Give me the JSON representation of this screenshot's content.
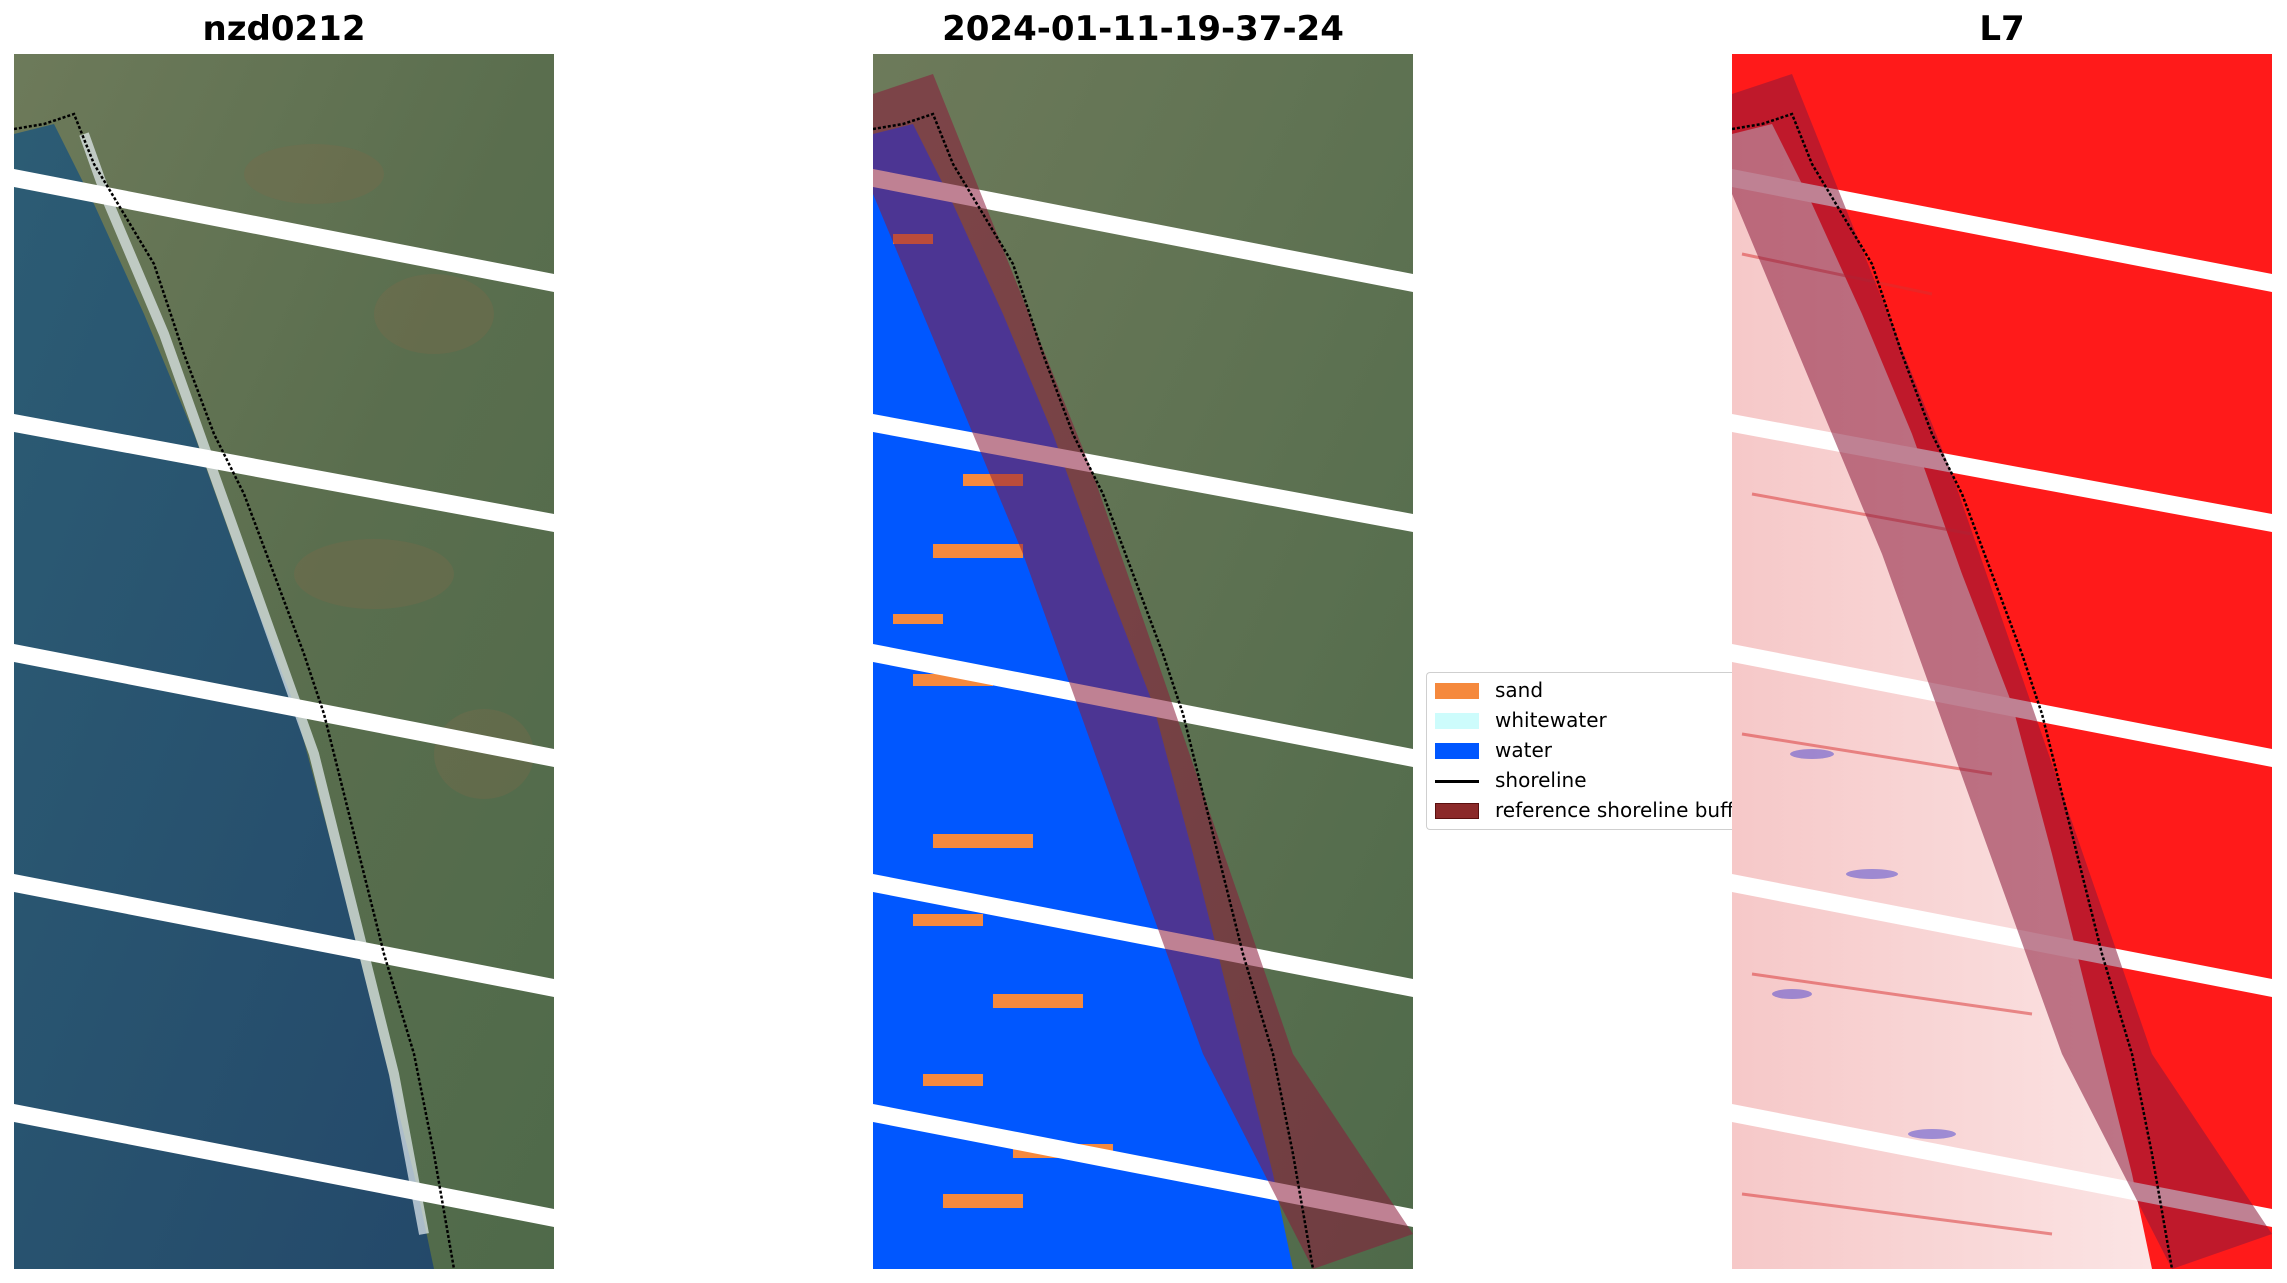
{
  "panels": [
    {
      "title": "nzd0212"
    },
    {
      "title": "2024-01-11-19-37-24"
    },
    {
      "title": "L7"
    }
  ],
  "legend": {
    "items": [
      {
        "label": "sand",
        "color": "#f5893d",
        "kind": "patch"
      },
      {
        "label": "whitewater",
        "color": "#cdfcfc",
        "kind": "patch"
      },
      {
        "label": "water",
        "color": "#0057ff",
        "kind": "patch"
      },
      {
        "label": "shoreline",
        "color": "#000000",
        "kind": "line"
      },
      {
        "label": "reference shoreline buffer",
        "color": "#8b2a2a",
        "kind": "patch"
      }
    ]
  },
  "colors": {
    "ocean": "#2d5a78",
    "land": "#5c7050",
    "water_class": "#0057ff",
    "sand_class": "#f5893d",
    "index_high": "#ff0000",
    "index_low": "#f8d8d8",
    "buffer_overlay": "#8b1a3a"
  }
}
